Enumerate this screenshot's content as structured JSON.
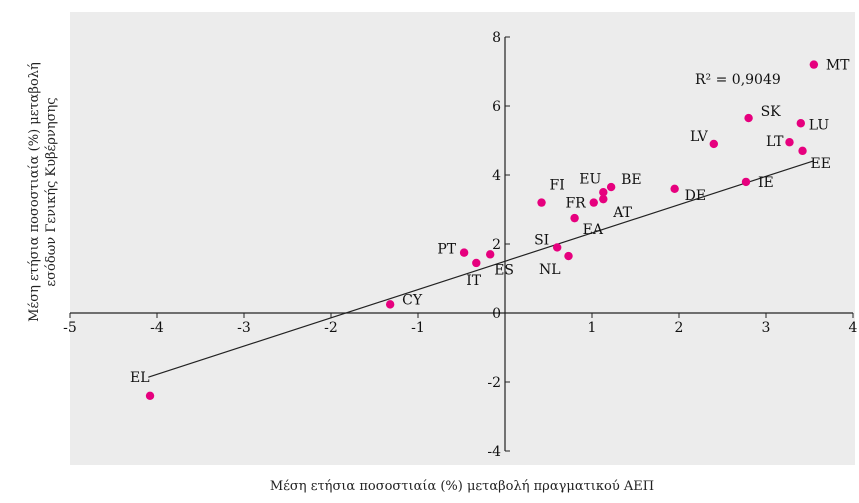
{
  "chart_data": {
    "type": "scatter",
    "xlabel": "Μέση ετήσια ποσοστιαία (%) μεταβολή πραγματικού ΑΕΠ",
    "ylabel_lines": [
      "Μέση ετήσια ποσοστιαία (%) μεταβολή",
      "εσόδων Γενικής Κυβέρνησης"
    ],
    "xlim": [
      -5,
      4
    ],
    "ylim": [
      -4,
      8
    ],
    "x_ticks": [
      -5,
      -4,
      -3,
      -2,
      -1,
      0,
      1,
      2,
      3,
      4
    ],
    "x_tick_labels": [
      "-5",
      "-4",
      "-3",
      "-2",
      "-1",
      "0",
      "1",
      "2",
      "3",
      "4"
    ],
    "y_ticks": [
      -4,
      -2,
      2,
      4,
      6,
      8
    ],
    "y_tick_labels": [
      "-4",
      "-2",
      "2",
      "4",
      "6",
      "8"
    ],
    "origin_label": "0",
    "grid": false,
    "marker_color": "#e6007e",
    "background_color": "#ececec",
    "trendline": {
      "slope": 0.82,
      "intercept": 1.5,
      "x_range": [
        -4.1,
        3.55
      ],
      "r2_label": "R² = 0,9049"
    },
    "points": [
      {
        "label": "MT",
        "x": 3.55,
        "y": 7.2
      },
      {
        "label": "SK",
        "x": 2.8,
        "y": 5.65
      },
      {
        "label": "LU",
        "x": 3.4,
        "y": 5.5
      },
      {
        "label": "LV",
        "x": 2.4,
        "y": 4.9
      },
      {
        "label": "LT",
        "x": 3.27,
        "y": 4.95
      },
      {
        "label": "EE",
        "x": 3.42,
        "y": 4.7
      },
      {
        "label": "IE",
        "x": 2.77,
        "y": 3.8
      },
      {
        "label": "DE",
        "x": 1.95,
        "y": 3.6
      },
      {
        "label": "BE",
        "x": 1.22,
        "y": 3.65
      },
      {
        "label": "EU",
        "x": 1.13,
        "y": 3.5
      },
      {
        "label": "FI",
        "x": 0.42,
        "y": 3.2
      },
      {
        "label": "FR",
        "x": 1.02,
        "y": 3.2
      },
      {
        "label": "AT",
        "x": 1.13,
        "y": 3.3
      },
      {
        "label": "EA",
        "x": 0.8,
        "y": 2.75
      },
      {
        "label": "SI",
        "x": 0.6,
        "y": 1.9
      },
      {
        "label": "NL",
        "x": 0.73,
        "y": 1.65
      },
      {
        "label": "PT",
        "x": -0.47,
        "y": 1.75
      },
      {
        "label": "ES",
        "x": -0.17,
        "y": 1.7
      },
      {
        "label": "IT",
        "x": -0.33,
        "y": 1.45
      },
      {
        "label": "CY",
        "x": -1.32,
        "y": 0.25
      },
      {
        "label": "EL",
        "x": -4.08,
        "y": -2.4
      }
    ]
  }
}
